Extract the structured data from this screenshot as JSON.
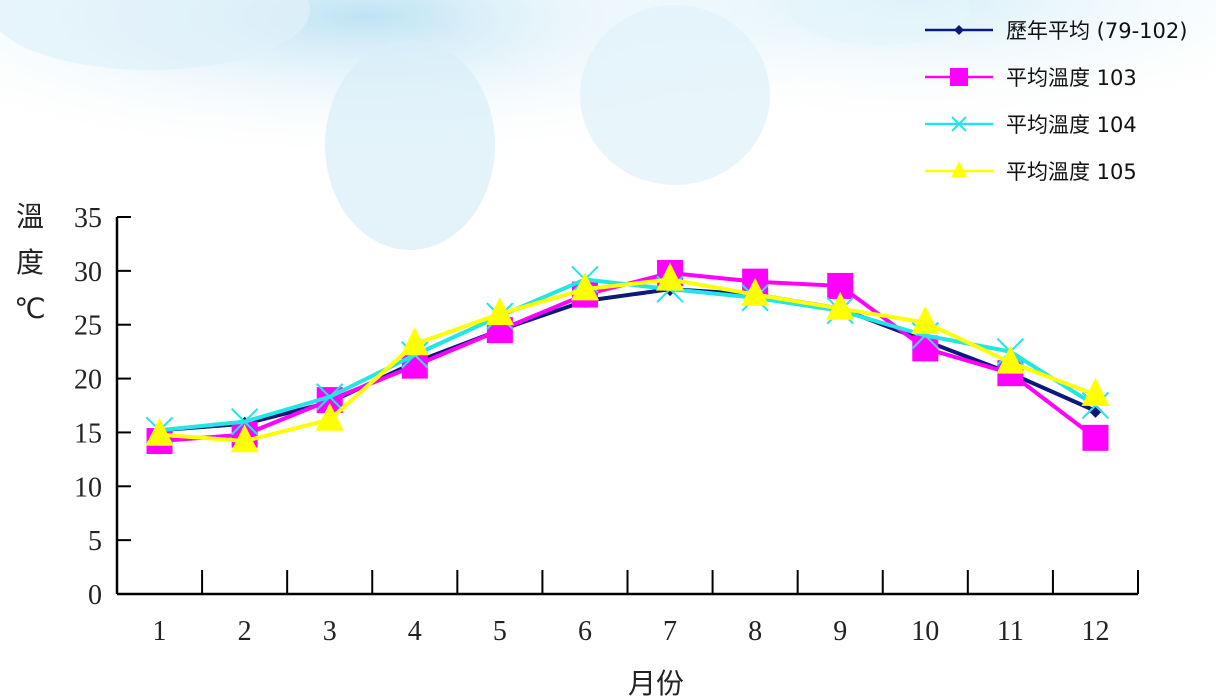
{
  "chart_data": {
    "type": "line",
    "xlabel": "月份",
    "ylabel_chars": [
      "溫",
      "度",
      "℃"
    ],
    "x": [
      "1",
      "2",
      "3",
      "4",
      "5",
      "6",
      "7",
      "8",
      "9",
      "10",
      "11",
      "12"
    ],
    "ylim": [
      0,
      35
    ],
    "yticks": [
      "0",
      "5",
      "10",
      "15",
      "20",
      "25",
      "30",
      "35"
    ],
    "grid": false,
    "legend_position": "top-right",
    "series": [
      {
        "name": "歷年平均 (79-102)",
        "color": "#0a1a7a",
        "marker": "diamond",
        "values": [
          15.2,
          15.8,
          17.8,
          21.5,
          24.5,
          27.2,
          28.3,
          27.8,
          26.5,
          23.5,
          20.5,
          17.0
        ]
      },
      {
        "name": "平均溫度 103",
        "color": "#ff00ff",
        "marker": "square",
        "values": [
          14.2,
          14.8,
          18.0,
          21.2,
          24.5,
          27.8,
          29.8,
          29.0,
          28.6,
          22.8,
          20.5,
          14.5
        ]
      },
      {
        "name": "平均溫度 104",
        "color": "#22e5e5",
        "marker": "x",
        "values": [
          15.2,
          16.0,
          18.3,
          22.2,
          25.8,
          29.2,
          28.3,
          27.5,
          26.3,
          24.0,
          22.5,
          17.5
        ]
      },
      {
        "name": "平均溫度 105",
        "color": "#ffff00",
        "marker": "triangle",
        "values": [
          14.8,
          14.2,
          16.2,
          23.2,
          26.0,
          28.3,
          29.2,
          27.8,
          26.5,
          25.2,
          21.5,
          18.5
        ]
      }
    ]
  }
}
